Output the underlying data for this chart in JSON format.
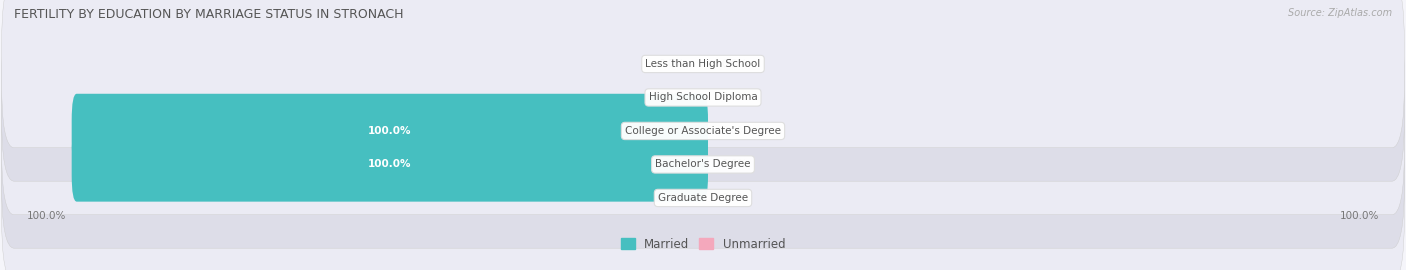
{
  "title": "FERTILITY BY EDUCATION BY MARRIAGE STATUS IN STRONACH",
  "source": "Source: ZipAtlas.com",
  "categories": [
    "Less than High School",
    "High School Diploma",
    "College or Associate's Degree",
    "Bachelor's Degree",
    "Graduate Degree"
  ],
  "married": [
    0.0,
    0.0,
    100.0,
    100.0,
    0.0
  ],
  "unmarried": [
    0.0,
    0.0,
    0.0,
    0.0,
    0.0
  ],
  "married_color": "#46bfc0",
  "unmarried_color": "#f4a8bc",
  "row_bg_even": "#ebebf4",
  "row_bg_odd": "#dddde8",
  "label_bg_color": "#ffffff",
  "title_color": "#555555",
  "text_color": "#555555",
  "value_color": "#777777",
  "legend_married": "Married",
  "legend_unmarried": "Unmarried",
  "figsize": [
    14.06,
    2.7
  ],
  "dpi": 100
}
